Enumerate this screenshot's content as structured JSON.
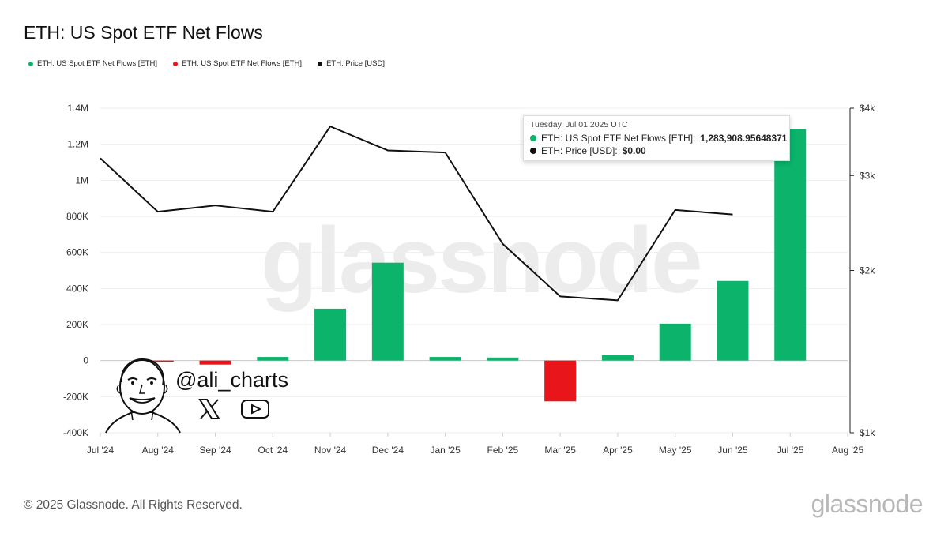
{
  "title": "ETH: US Spot ETF Net Flows",
  "legend": [
    {
      "label": "ETH: US Spot ETF Net Flows [ETH]",
      "color": "#0bb36b"
    },
    {
      "label": "ETH: US Spot ETF Net Flows [ETH]",
      "color": "#e8161b"
    },
    {
      "label": "ETH: Price [USD]",
      "color": "#111111"
    }
  ],
  "tooltip": {
    "date": "Tuesday, Jul 01 2025 UTC",
    "flows_label": "ETH: US Spot ETF Net Flows [ETH]:",
    "flows_value": "1,283,908.95648371",
    "price_label": "ETH: Price [USD]:",
    "price_value": "$0.00"
  },
  "watermark": "glassnode",
  "author": {
    "handle": "@ali_charts",
    "icons": [
      "x-logo-icon",
      "youtube-icon"
    ]
  },
  "footer": "© 2025 Glassnode. All Rights Reserved.",
  "brand": "glassnode",
  "chart_data": {
    "type": "bar",
    "categories": [
      "Jul '24",
      "Aug '24",
      "Sep '24",
      "Oct '24",
      "Nov '24",
      "Dec '24",
      "Jan '25",
      "Feb '25",
      "Mar '25",
      "Apr '25",
      "May '25",
      "Jun '25",
      "Jul '25",
      "Aug '25"
    ],
    "series": [
      {
        "name": "ETH: US Spot ETF Net Flows [ETH]",
        "type": "bar",
        "axis": "left",
        "values": [
          null,
          -5000,
          -22000,
          20000,
          288000,
          543000,
          20000,
          17000,
          -226000,
          30000,
          205000,
          442000,
          1283909,
          null
        ],
        "positive_color": "#0bb36b",
        "negative_color": "#e8161b"
      },
      {
        "name": "ETH: Price [USD]",
        "type": "line",
        "axis": "right",
        "color": "#111111",
        "values": [
          3230,
          2570,
          2640,
          2570,
          3700,
          3340,
          3310,
          2240,
          1790,
          1760,
          2590,
          2540,
          null,
          null
        ]
      }
    ],
    "y_left": {
      "min": -400000,
      "max": 1400000,
      "ticks": [
        -400000,
        -200000,
        0,
        200000,
        400000,
        600000,
        800000,
        1000000,
        1200000,
        1400000
      ],
      "tick_labels": [
        "-400K",
        "-200K",
        "0",
        "200K",
        "400K",
        "600K",
        "800K",
        "1M",
        "1.2M",
        "1.4M"
      ]
    },
    "y_right": {
      "scale": "log",
      "min": 1000,
      "max": 4000,
      "ticks": [
        1000,
        2000,
        3000,
        4000
      ],
      "tick_labels": [
        "$1k",
        "$2k",
        "$3k",
        "$4k"
      ]
    },
    "grid": true,
    "legend_position": "top-left"
  }
}
